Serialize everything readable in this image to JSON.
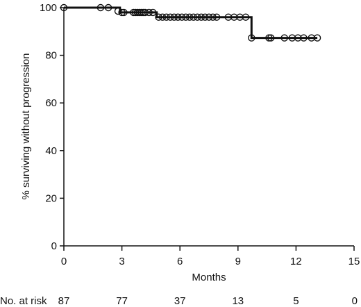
{
  "chart_data": {
    "type": "line",
    "title": "",
    "xlabel": "Months",
    "ylabel": "% surviving without progression",
    "xlim": [
      0,
      15
    ],
    "ylim": [
      0,
      100
    ],
    "x_ticks": [
      0,
      3,
      6,
      9,
      12,
      15
    ],
    "y_ticks": [
      0,
      20,
      40,
      60,
      80,
      100
    ],
    "grid": false,
    "legend": "none",
    "series": [
      {
        "steps": [
          [
            0,
            100
          ],
          [
            2.9,
            100
          ],
          [
            2.9,
            98
          ],
          [
            4.8,
            98
          ],
          [
            4.8,
            96
          ],
          [
            9.7,
            96
          ],
          [
            9.7,
            87.3
          ],
          [
            13.1,
            87.3
          ]
        ],
        "censored": [
          [
            0,
            100
          ],
          [
            1.9,
            100
          ],
          [
            2.3,
            100
          ],
          [
            2.8,
            98.5
          ],
          [
            3.0,
            98
          ],
          [
            3.1,
            98
          ],
          [
            3.6,
            98
          ],
          [
            3.7,
            98
          ],
          [
            3.8,
            98
          ],
          [
            3.9,
            98
          ],
          [
            4.0,
            98
          ],
          [
            4.1,
            98
          ],
          [
            4.2,
            98
          ],
          [
            4.4,
            98
          ],
          [
            4.6,
            98
          ],
          [
            4.9,
            96
          ],
          [
            5.1,
            96
          ],
          [
            5.3,
            96
          ],
          [
            5.5,
            96
          ],
          [
            5.7,
            96
          ],
          [
            5.9,
            96
          ],
          [
            6.1,
            96
          ],
          [
            6.3,
            96
          ],
          [
            6.5,
            96
          ],
          [
            6.7,
            96
          ],
          [
            6.9,
            96
          ],
          [
            7.1,
            96
          ],
          [
            7.3,
            96
          ],
          [
            7.5,
            96
          ],
          [
            7.7,
            96
          ],
          [
            7.9,
            96
          ],
          [
            8.5,
            96
          ],
          [
            8.8,
            96
          ],
          [
            9.1,
            96
          ],
          [
            9.4,
            96
          ],
          [
            9.7,
            87.3
          ],
          [
            10.6,
            87.3
          ],
          [
            10.7,
            87.3
          ],
          [
            11.4,
            87.3
          ],
          [
            11.8,
            87.3
          ],
          [
            12.1,
            87.3
          ],
          [
            12.4,
            87.3
          ],
          [
            12.8,
            87.3
          ],
          [
            13.1,
            87.3
          ]
        ]
      }
    ],
    "risk_table": {
      "label": "No. at risk",
      "months": [
        0,
        3,
        6,
        9,
        12,
        15
      ],
      "counts": [
        "87",
        "77",
        "37",
        "13",
        "5",
        "0"
      ]
    }
  }
}
